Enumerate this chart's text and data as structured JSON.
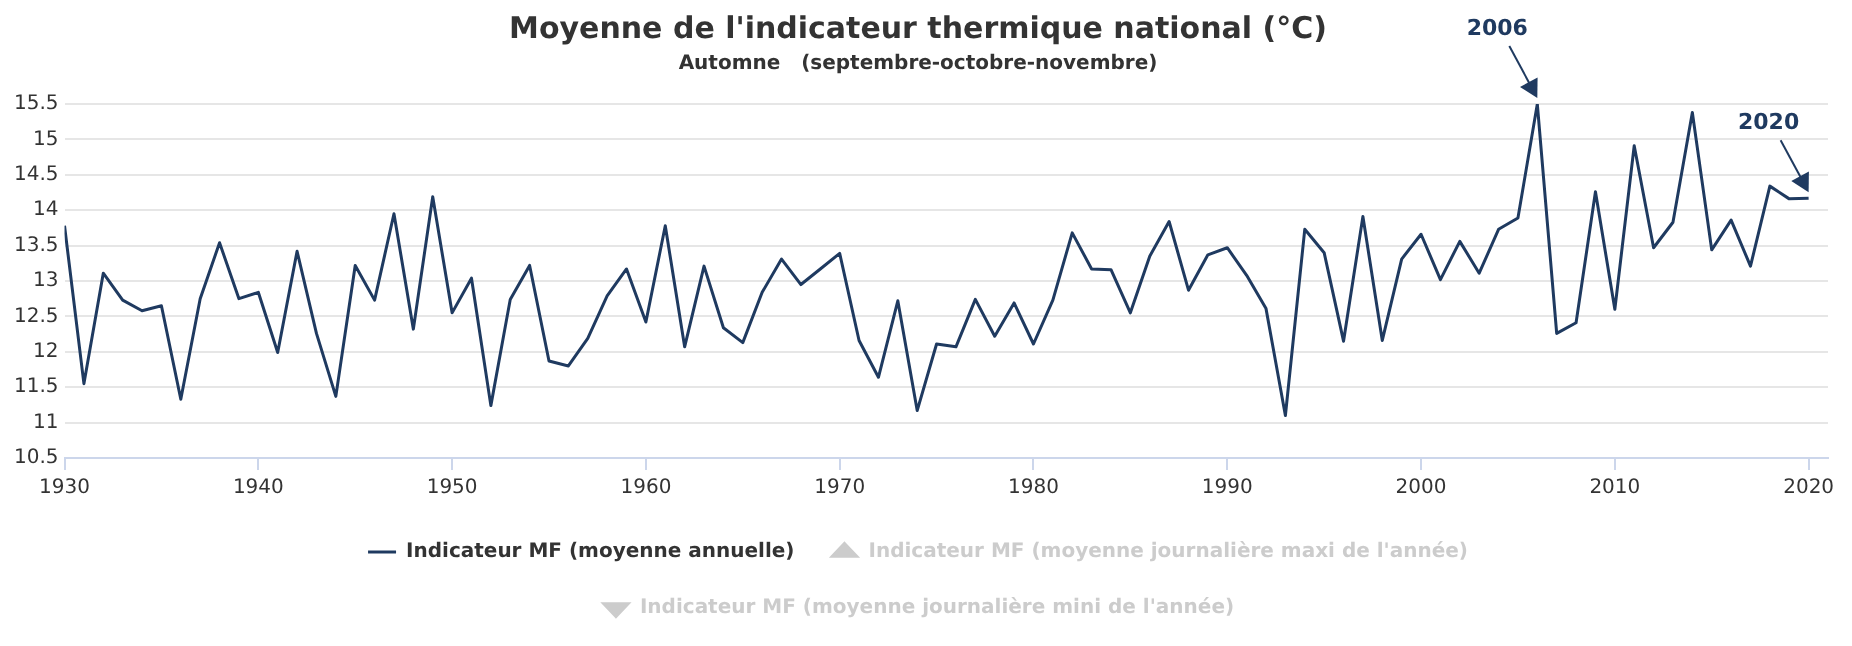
{
  "chart_data": {
    "type": "line",
    "title": "Moyenne de l'indicateur thermique national (°C)",
    "subtitle": "Automne   (septembre-octobre-novembre)",
    "x": [
      1930,
      1931,
      1932,
      1933,
      1934,
      1935,
      1936,
      1937,
      1938,
      1939,
      1940,
      1941,
      1942,
      1943,
      1944,
      1945,
      1946,
      1947,
      1948,
      1949,
      1950,
      1951,
      1952,
      1953,
      1954,
      1955,
      1956,
      1957,
      1958,
      1959,
      1960,
      1961,
      1962,
      1963,
      1964,
      1965,
      1966,
      1967,
      1968,
      1969,
      1970,
      1971,
      1972,
      1973,
      1974,
      1975,
      1976,
      1977,
      1978,
      1979,
      1980,
      1981,
      1982,
      1983,
      1984,
      1985,
      1986,
      1987,
      1988,
      1989,
      1990,
      1991,
      1992,
      1993,
      1994,
      1995,
      1996,
      1997,
      1998,
      1999,
      2000,
      2001,
      2002,
      2003,
      2004,
      2005,
      2006,
      2007,
      2008,
      2009,
      2010,
      2011,
      2012,
      2013,
      2014,
      2015,
      2016,
      2017,
      2018,
      2019,
      2020
    ],
    "series": [
      {
        "name": "Indicateur MF (moyenne annuelle)",
        "color": "#1f3a60",
        "values": [
          13.78,
          11.55,
          13.11,
          12.73,
          12.58,
          12.65,
          11.33,
          12.75,
          13.54,
          12.75,
          12.84,
          11.99,
          13.42,
          12.26,
          11.37,
          13.22,
          12.73,
          13.95,
          12.32,
          14.19,
          12.55,
          13.04,
          11.24,
          12.74,
          13.22,
          11.87,
          11.8,
          12.19,
          12.79,
          13.17,
          12.42,
          13.78,
          12.07,
          13.21,
          12.34,
          12.13,
          12.84,
          13.31,
          12.95,
          13.17,
          13.39,
          12.16,
          11.64,
          12.72,
          11.17,
          12.11,
          12.07,
          12.74,
          12.22,
          12.69,
          12.11,
          12.73,
          13.68,
          13.17,
          13.16,
          12.55,
          13.35,
          13.84,
          12.87,
          13.37,
          13.47,
          13.08,
          12.61,
          11.1,
          13.73,
          13.4,
          12.15,
          13.91,
          12.16,
          13.31,
          13.66,
          13.02,
          13.56,
          13.11,
          13.73,
          13.89,
          15.5,
          12.26,
          12.41,
          14.26,
          12.6,
          14.91,
          13.47,
          13.83,
          15.38,
          13.44,
          13.86,
          13.21,
          14.34,
          14.16,
          14.17
        ]
      },
      {
        "name": "Indicateur MF (moyenne journalière maxi de l'année)",
        "color": "#cccccc",
        "marker": "triangle",
        "values": [
          null,
          null,
          null,
          null,
          null,
          null,
          null,
          null,
          null,
          null,
          null,
          null,
          null,
          null,
          null,
          null,
          null,
          null,
          null,
          null,
          null,
          null,
          null,
          null,
          null,
          null,
          null,
          null,
          null,
          null,
          null,
          null,
          null,
          null,
          null,
          null,
          null,
          null,
          null,
          null,
          null,
          null,
          null,
          null,
          null,
          null,
          null,
          null,
          null,
          null,
          null,
          null,
          null,
          null,
          null,
          null,
          null,
          null,
          null,
          null,
          null,
          null,
          null,
          null,
          null,
          null,
          null,
          null,
          null,
          null,
          null,
          null,
          null,
          null,
          null,
          null,
          null,
          null,
          null,
          null,
          null,
          null,
          null,
          null,
          null,
          null,
          null,
          null,
          null,
          null,
          null
        ]
      },
      {
        "name": "Indicateur MF (moyenne journalière mini de l'année)",
        "color": "#cccccc",
        "marker": "triangle-down",
        "values": [
          null,
          null,
          null,
          null,
          null,
          null,
          null,
          null,
          null,
          null,
          null,
          null,
          null,
          null,
          null,
          null,
          null,
          null,
          null,
          null,
          null,
          null,
          null,
          null,
          null,
          null,
          null,
          null,
          null,
          null,
          null,
          null,
          null,
          null,
          null,
          null,
          null,
          null,
          null,
          null,
          null,
          null,
          null,
          null,
          null,
          null,
          null,
          null,
          null,
          null,
          null,
          null,
          null,
          null,
          null,
          null,
          null,
          null,
          null,
          null,
          null,
          null,
          null,
          null,
          null,
          null,
          null,
          null,
          null,
          null,
          null,
          null,
          null,
          null,
          null,
          null,
          null,
          null,
          null,
          null,
          null,
          null,
          null,
          null,
          null,
          null,
          null,
          null,
          null,
          null,
          null
        ]
      }
    ],
    "xlim": [
      1930,
      2021
    ],
    "xticks": [
      1930,
      1940,
      1950,
      1960,
      1970,
      1980,
      1990,
      2000,
      2010,
      2020
    ],
    "ylim": [
      10.5,
      15.5
    ],
    "yticks": [
      10.5,
      11,
      11.5,
      12,
      12.5,
      13,
      13.5,
      14,
      14.5,
      15,
      15.5
    ],
    "grid": "y",
    "legend": "bottom",
    "marker": "none",
    "line_style": "solid",
    "annotations": [
      {
        "text": "2006",
        "x": 2006,
        "y": 15.5
      },
      {
        "text": "2020",
        "x": 2020,
        "y": 14.17
      }
    ]
  }
}
